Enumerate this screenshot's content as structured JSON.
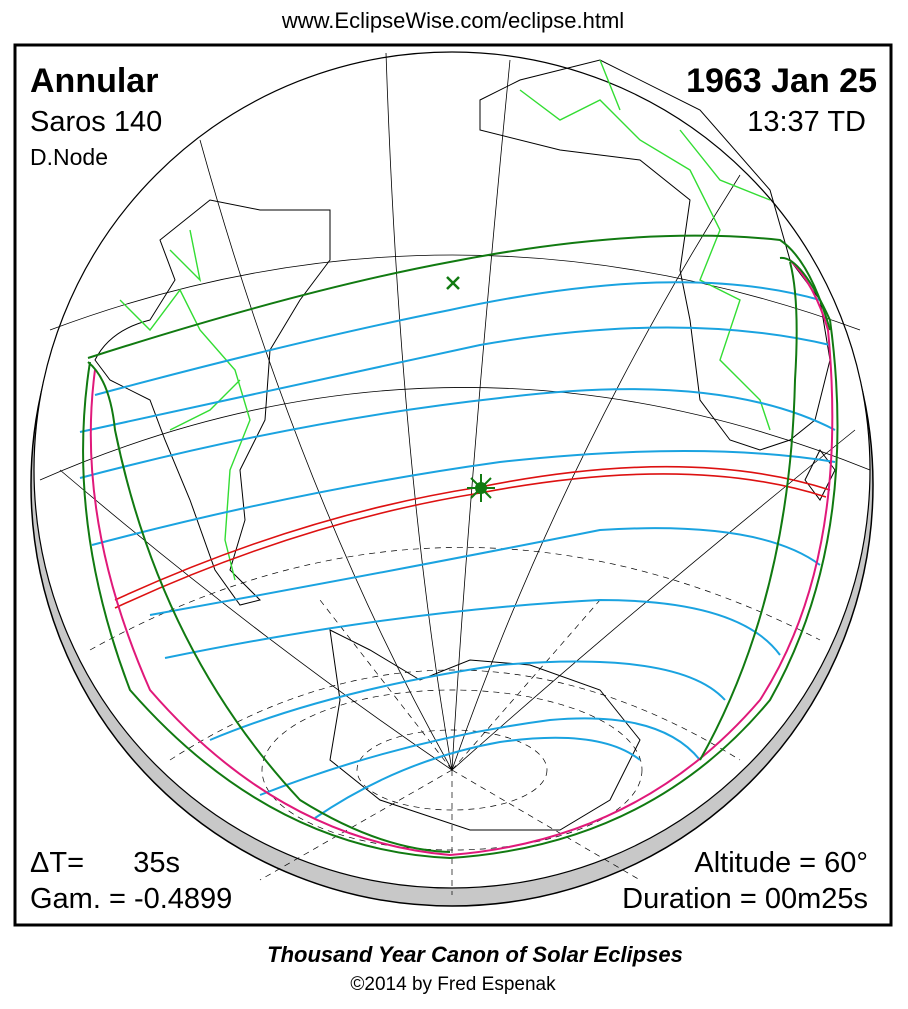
{
  "header": {
    "url": "www.EclipseWise.com/eclipse.html"
  },
  "eclipse": {
    "type": "Annular",
    "saros": "Saros 140",
    "node": "D.Node",
    "date": "1963 Jan 25",
    "time": "13:37 TD"
  },
  "parameters": {
    "delta_t_label": "ΔT=",
    "delta_t_value": "35s",
    "gamma": "Gam. = -0.4899",
    "altitude": "Altitude = 60°",
    "duration": "Duration = 00m25s"
  },
  "footer": {
    "title": "Thousand Year Canon of Solar Eclipses",
    "credit": "©2014 by Fred Espenak"
  }
}
